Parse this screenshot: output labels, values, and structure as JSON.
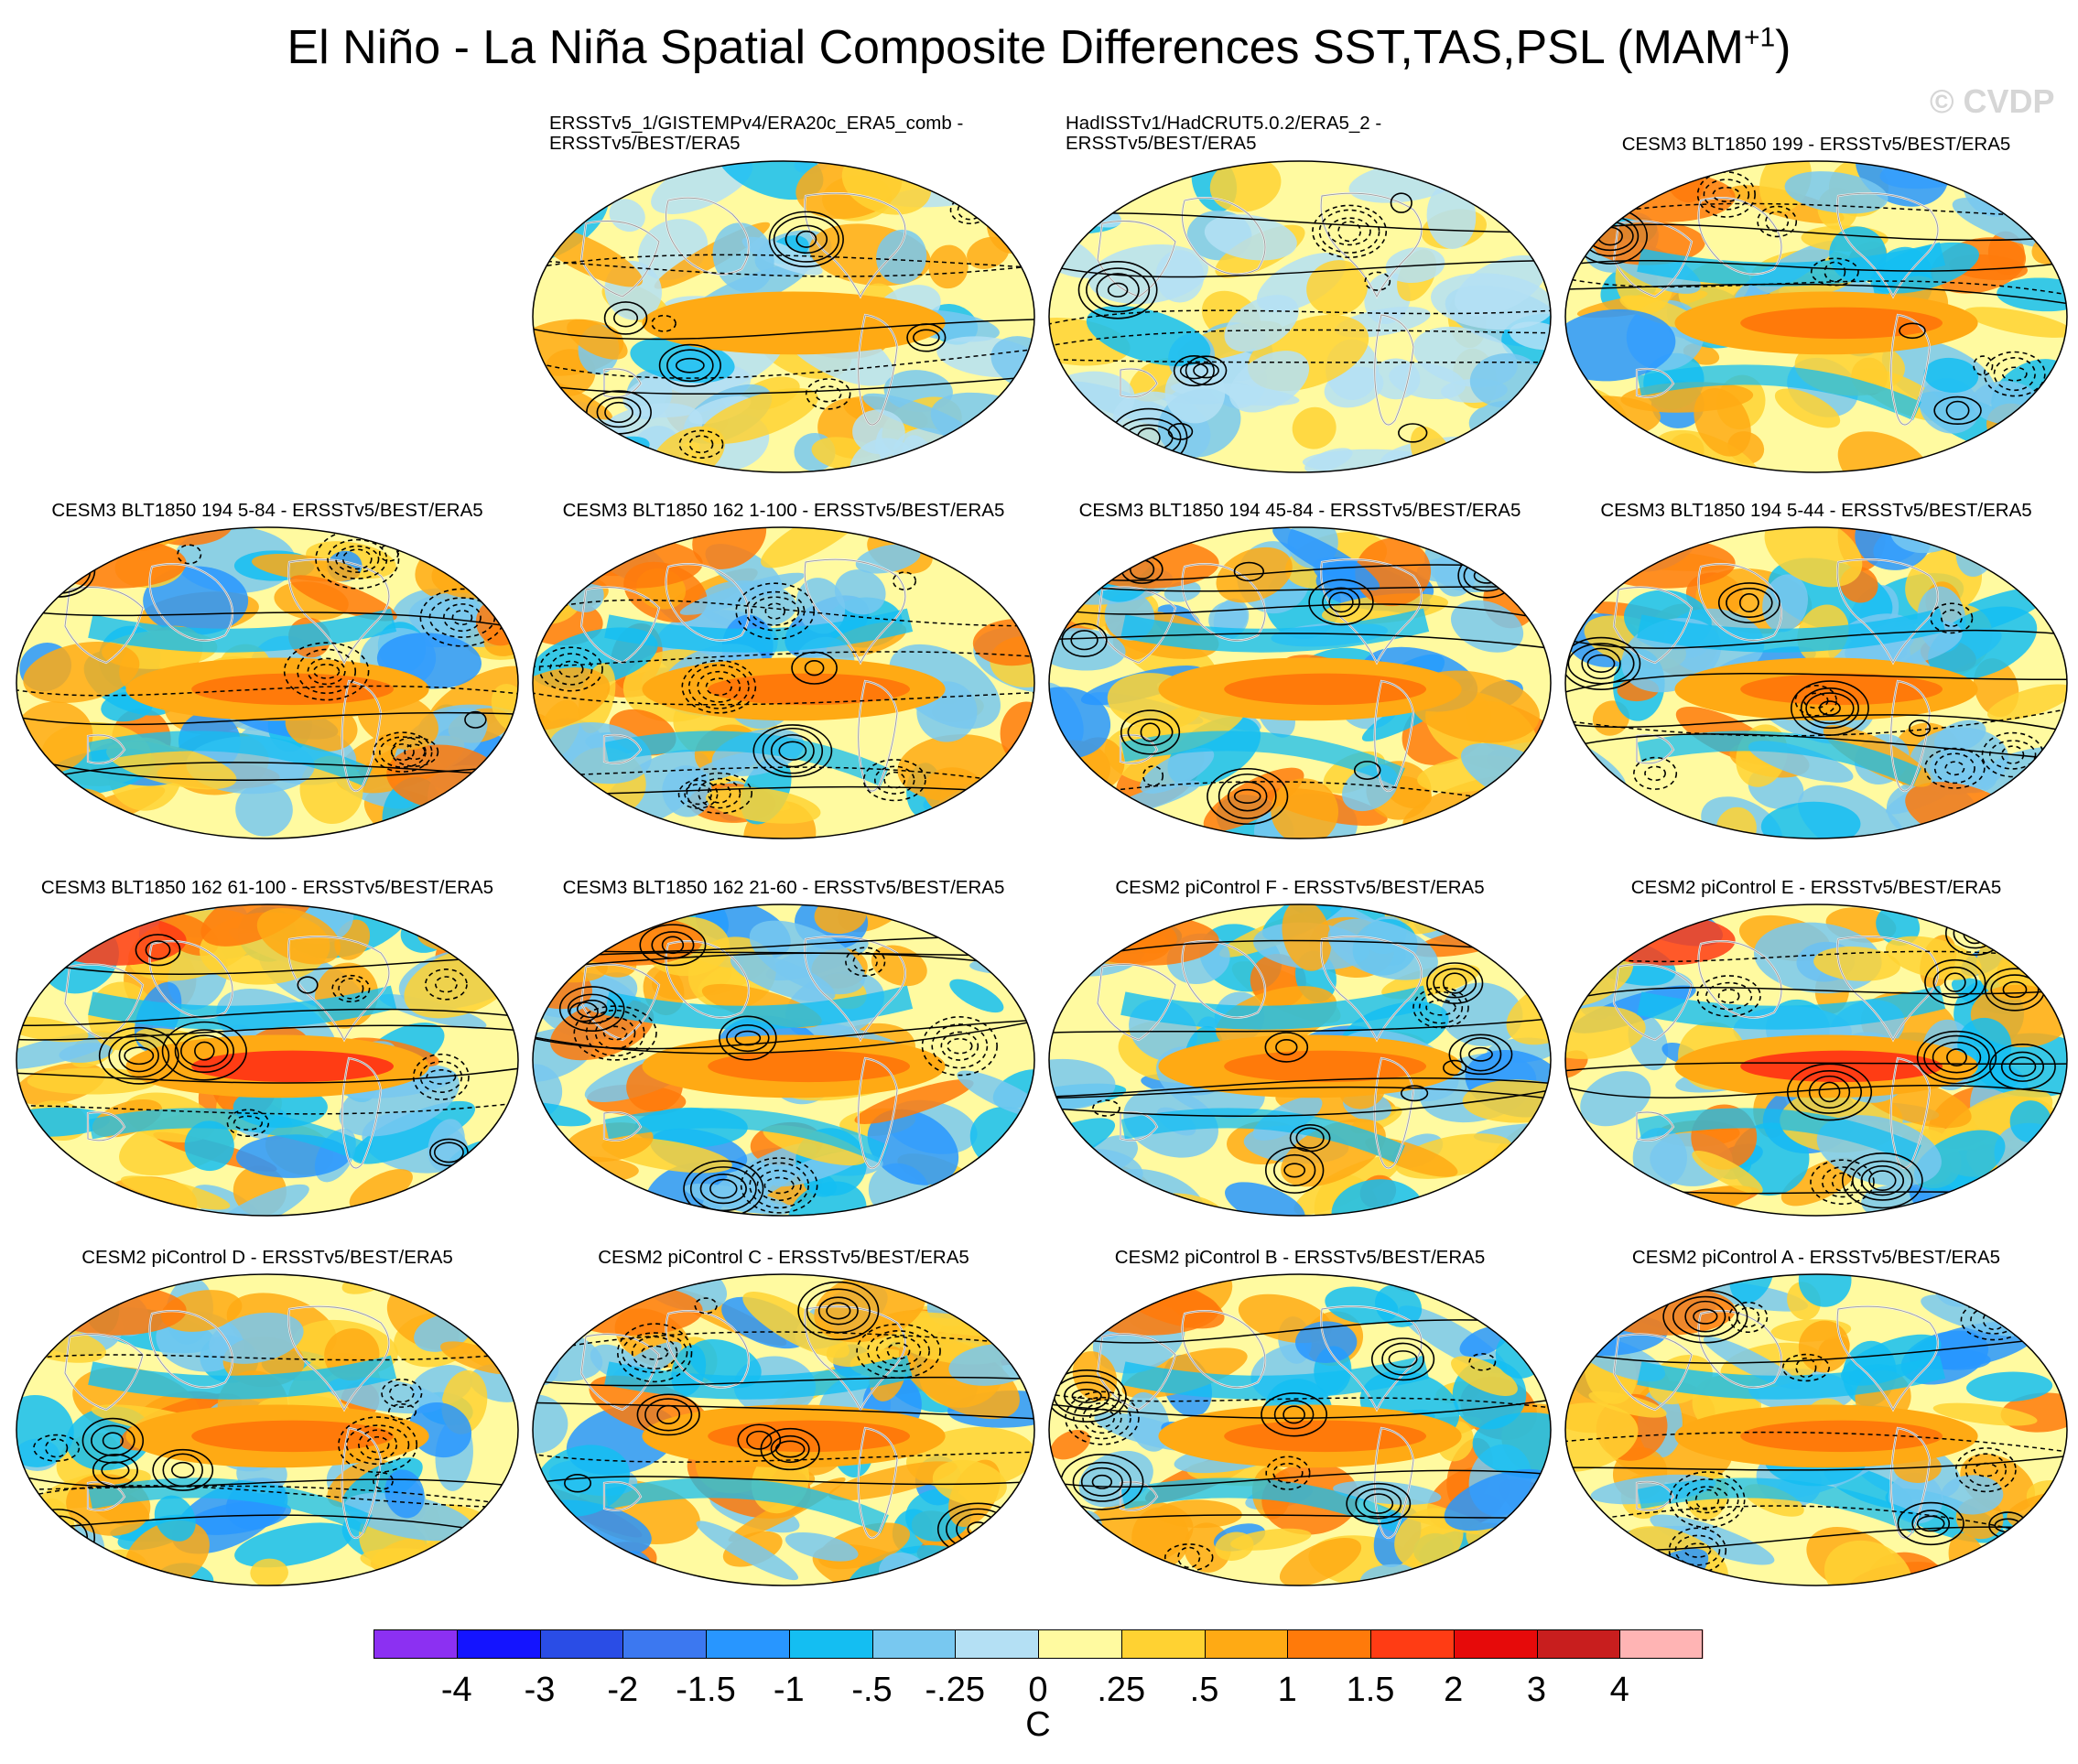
{
  "title": {
    "main": "El Niño - La Niña Spatial Composite Differences SST,TAS,PSL (MAM",
    "superscript": "+1",
    "close": ")"
  },
  "watermark": "© CVDP",
  "panels": [
    {
      "title": [
        "ERSSTv5_1/GISTEMPv4/ERA20c_ERA5_comb -",
        "ERSSTv5/BEST/ERA5"
      ],
      "pattern": "obs",
      "seed": 11
    },
    {
      "title": [
        "HadISSTv1/HadCRUT5.0.2/ERA5_2 -",
        "ERSSTv5/BEST/ERA5"
      ],
      "pattern": "obs-weak",
      "seed": 23
    },
    {
      "title": [
        "CESM3 BLT1850 199 - ERSSTv5/BEST/ERA5"
      ],
      "pattern": "model",
      "seed": 37
    },
    {
      "title": [
        "CESM3 BLT1850 194 5-84 - ERSSTv5/BEST/ERA5"
      ],
      "pattern": "model",
      "seed": 41
    },
    {
      "title": [
        "CESM3 BLT1850 162 1-100 - ERSSTv5/BEST/ERA5"
      ],
      "pattern": "model",
      "seed": 53
    },
    {
      "title": [
        "CESM3 BLT1850 194 45-84 - ERSSTv5/BEST/ERA5"
      ],
      "pattern": "model",
      "seed": 67
    },
    {
      "title": [
        "CESM3 BLT1850 194 5-44 - ERSSTv5/BEST/ERA5"
      ],
      "pattern": "model",
      "seed": 71
    },
    {
      "title": [
        "CESM3 BLT1850 162 61-100 - ERSSTv5/BEST/ERA5"
      ],
      "pattern": "model-strong",
      "seed": 83
    },
    {
      "title": [
        "CESM3 BLT1850 162 21-60 - ERSSTv5/BEST/ERA5"
      ],
      "pattern": "model",
      "seed": 97
    },
    {
      "title": [
        "CESM2 piControl F - ERSSTv5/BEST/ERA5"
      ],
      "pattern": "model",
      "seed": 101
    },
    {
      "title": [
        "CESM2 piControl E - ERSSTv5/BEST/ERA5"
      ],
      "pattern": "model-strong",
      "seed": 113
    },
    {
      "title": [
        "CESM2 piControl D - ERSSTv5/BEST/ERA5"
      ],
      "pattern": "model",
      "seed": 127
    },
    {
      "title": [
        "CESM2 piControl C - ERSSTv5/BEST/ERA5"
      ],
      "pattern": "model",
      "seed": 131
    },
    {
      "title": [
        "CESM2 piControl B - ERSSTv5/BEST/ERA5"
      ],
      "pattern": "model",
      "seed": 149
    },
    {
      "title": [
        "CESM2 piControl A - ERSSTv5/BEST/ERA5"
      ],
      "pattern": "model",
      "seed": 157
    }
  ],
  "colorbar": {
    "colors": [
      "#8c30f2",
      "#1414ff",
      "#2a4de6",
      "#3c78f0",
      "#2896ff",
      "#14bef2",
      "#78c8f0",
      "#b4e0f4",
      "#fffaa0",
      "#ffd232",
      "#ffaa14",
      "#ff7a0a",
      "#ff3c14",
      "#e60a0a",
      "#c81e1e",
      "#ffb4b4"
    ],
    "labels": [
      "-4",
      "-3",
      "-2",
      "-1.5",
      "-1",
      "-.5",
      "-.25",
      "0",
      ".25",
      ".5",
      "1",
      "1.5",
      "2",
      "3",
      "4"
    ],
    "units": "C"
  }
}
